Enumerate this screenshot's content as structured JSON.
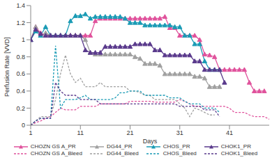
{
  "chart_data": {
    "type": "line",
    "x_label": "Days",
    "y_label": "Perfusion Rate [VVD]",
    "x": [
      1,
      2,
      3,
      4,
      5,
      6,
      7,
      8,
      9,
      10,
      11,
      12,
      13,
      14,
      15,
      16,
      17,
      18,
      19,
      20,
      21,
      22,
      23,
      24,
      25,
      26,
      27,
      28,
      29,
      30,
      31,
      32,
      33,
      34,
      35,
      36,
      37,
      38,
      39,
      40,
      41,
      42,
      43,
      44,
      45,
      46,
      47,
      48,
      49
    ],
    "xlim": [
      1,
      49
    ],
    "xticks": [
      1,
      11,
      21,
      31,
      41
    ],
    "ylim": [
      0,
      1.4
    ],
    "yticks": [
      0,
      0.2,
      0.4,
      0.6,
      0.8,
      1,
      1.2,
      1.4
    ],
    "grid": false,
    "legend": "bottom",
    "series": [
      {
        "name": "CHOZN GS A_PR",
        "color": "#e0529c",
        "marker": "triangle",
        "line_style": "solid",
        "values": [
          1.0,
          1.15,
          1.08,
          1.05,
          1.05,
          1.05,
          1.05,
          1.05,
          1.05,
          1.05,
          1.05,
          1.05,
          1.05,
          1.22,
          1.25,
          1.25,
          1.25,
          1.25,
          1.25,
          1.25,
          1.25,
          1.25,
          1.25,
          1.25,
          1.25,
          1.25,
          1.25,
          1.27,
          1.14,
          1.14,
          1.05,
          1.05,
          1.05,
          1.05,
          1.0,
          0.83,
          0.82,
          0.8,
          0.65,
          0.65,
          0.65,
          0.65,
          0.65,
          0.65,
          0.5,
          0.4,
          0.4,
          0.4,
          null
        ]
      },
      {
        "name": "DG44_PR",
        "color": "#a0a0a0",
        "marker": "triangle",
        "line_style": "solid",
        "values": [
          1.0,
          1.15,
          1.05,
          1.08,
          1.05,
          1.05,
          1.05,
          1.05,
          1.05,
          1.05,
          1.05,
          1.0,
          0.85,
          0.83,
          0.83,
          0.83,
          0.83,
          0.83,
          0.83,
          0.83,
          0.83,
          0.8,
          0.78,
          0.72,
          0.72,
          0.72,
          0.7,
          0.6,
          0.6,
          0.6,
          0.6,
          0.6,
          0.6,
          0.57,
          0.57,
          0.55,
          0.45,
          0.45,
          0.45,
          null,
          null,
          null,
          null,
          null,
          null,
          null,
          null,
          null,
          null
        ]
      },
      {
        "name": "CHOS_PR",
        "color": "#1a9bb5",
        "marker": "triangle",
        "line_style": "solid",
        "values": [
          1.0,
          1.1,
          1.05,
          1.15,
          1.05,
          1.05,
          1.05,
          1.05,
          1.22,
          1.28,
          1.28,
          1.3,
          1.25,
          1.27,
          1.27,
          1.27,
          1.27,
          1.27,
          1.27,
          1.25,
          1.2,
          1.2,
          1.2,
          1.17,
          1.17,
          1.17,
          1.17,
          1.17,
          1.17,
          1.15,
          1.15,
          1.05,
          1.05,
          0.95,
          0.95,
          0.75,
          0.65,
          0.65,
          0.65,
          null,
          null,
          null,
          null,
          null,
          null,
          null,
          null,
          null,
          null
        ]
      },
      {
        "name": "CHOK1_PR",
        "color": "#5a3a8c",
        "marker": "triangle",
        "line_style": "solid",
        "values": [
          1.0,
          1.12,
          1.07,
          1.05,
          1.05,
          1.05,
          1.05,
          1.05,
          1.05,
          1.05,
          1.05,
          0.88,
          0.85,
          0.85,
          0.85,
          0.92,
          0.92,
          0.92,
          0.92,
          0.92,
          0.92,
          0.95,
          0.95,
          0.95,
          0.95,
          0.88,
          0.88,
          0.82,
          0.82,
          0.82,
          0.82,
          0.82,
          0.82,
          0.75,
          0.75,
          0.65,
          0.65,
          0.65,
          0.65,
          0.5,
          null,
          null,
          null,
          null,
          null,
          null,
          null,
          null,
          null
        ]
      },
      {
        "name": "CHOZN GS A_Bleed",
        "color": "#e0529c",
        "marker": "none",
        "line_style": "dashed",
        "values": [
          0,
          0.03,
          0.05,
          0.08,
          0.1,
          0.15,
          0.2,
          0.18,
          0.18,
          0.18,
          0.22,
          0.22,
          0.22,
          0.22,
          0.25,
          0.25,
          0.25,
          0.25,
          0.25,
          0.25,
          0.28,
          0.28,
          0.28,
          0.28,
          0.28,
          0.27,
          0.27,
          0.27,
          0.27,
          0.27,
          0.3,
          0.28,
          0.25,
          0.22,
          0.22,
          0.22,
          0.22,
          0.22,
          0.22,
          0.22,
          0.2,
          0.15,
          0.15,
          0.15,
          0.12,
          0.1,
          0.1,
          0.1,
          0.07
        ]
      },
      {
        "name": "DG44_Bleed",
        "color": "#a0a0a0",
        "marker": "none",
        "line_style": "dashed",
        "values": [
          0,
          0.05,
          0.1,
          0.1,
          0.1,
          0.3,
          0.6,
          0.82,
          0.6,
          0.5,
          0.55,
          0.45,
          0.45,
          0.45,
          0.5,
          0.45,
          0.45,
          0.45,
          0.45,
          0.45,
          0.4,
          0.4,
          0.38,
          0.35,
          0.35,
          0.3,
          0.3,
          0.3,
          0.3,
          0.3,
          0.25,
          0.2,
          0.1,
          0.2,
          0.18,
          0.15,
          0.12,
          0.12,
          null,
          null,
          null,
          null,
          null,
          null,
          null,
          null,
          null,
          null,
          null
        ]
      },
      {
        "name": "CHOS_Bleed",
        "color": "#1a9bb5",
        "marker": "none",
        "line_style": "dashed",
        "values": [
          0,
          0.05,
          0.08,
          0.08,
          0.08,
          0.93,
          0.2,
          0.3,
          0.3,
          0.3,
          0.32,
          0.35,
          0.3,
          0.3,
          0.3,
          0.3,
          0.3,
          0.32,
          0.38,
          0.38,
          0.4,
          0.4,
          0.4,
          0.35,
          0.35,
          0.35,
          0.35,
          0.35,
          0.32,
          0.32,
          0.32,
          0.28,
          0.25,
          0.25,
          0.25,
          0.2,
          0.2,
          0.2,
          0.15,
          null,
          null,
          null,
          null,
          null,
          null,
          null,
          null,
          null,
          null
        ]
      },
      {
        "name": "CHOK1_Bleed",
        "color": "#5a3a8c",
        "marker": "none",
        "line_style": "dashed",
        "values": [
          0,
          0.05,
          0.08,
          0.08,
          0.08,
          0.5,
          0.4,
          0.35,
          0.35,
          0.35,
          0.3,
          0.3,
          0.3,
          0.3,
          0.25,
          0.25,
          0.25,
          0.25,
          0.25,
          0.25,
          0.25,
          0.25,
          0.25,
          0.25,
          0.25,
          0.25,
          0.25,
          0.25,
          0.25,
          0.25,
          0.22,
          0.22,
          0.22,
          0.22,
          0.22,
          0.18,
          0.18,
          0.18,
          0.1,
          null,
          null,
          null,
          null,
          null,
          null,
          null,
          null,
          null,
          null
        ]
      }
    ]
  }
}
